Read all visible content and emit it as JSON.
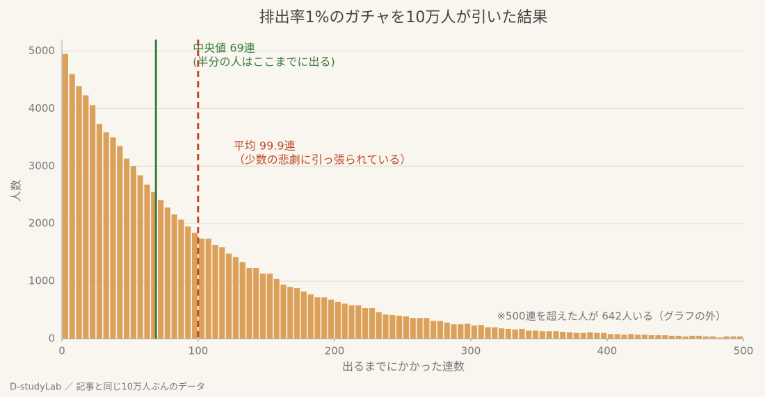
{
  "chart_data": {
    "type": "histogram",
    "title": "排出率1%のガチャを10万人が引いた結果",
    "x_label": "出るまでにかかった連数",
    "y_label": "人数",
    "color": "#dba15a",
    "bins": [
      0,
      5,
      10,
      15,
      20,
      25,
      30,
      35,
      40,
      45,
      50,
      55,
      60,
      65,
      70,
      75,
      80,
      85,
      90,
      95,
      100,
      105,
      110,
      115,
      120,
      125,
      130,
      135,
      140,
      145,
      150,
      155,
      160,
      165,
      170,
      175,
      180,
      185,
      190,
      195,
      200,
      205,
      210,
      215,
      220,
      225,
      230,
      235,
      240,
      245,
      250,
      255,
      260,
      265,
      270,
      275,
      280,
      285,
      290,
      295,
      300,
      305,
      310,
      315,
      320,
      325,
      330,
      335,
      340,
      345,
      350,
      355,
      360,
      365,
      370,
      375,
      380,
      385,
      390,
      395,
      400,
      405,
      410,
      415,
      420,
      425,
      430,
      435,
      440,
      445,
      450,
      455,
      460,
      465,
      470,
      475,
      480,
      485,
      490,
      495,
      500
    ],
    "counts": [
      4950,
      4600,
      4390,
      4230,
      4060,
      3730,
      3590,
      3500,
      3350,
      3130,
      3000,
      2840,
      2680,
      2550,
      2410,
      2280,
      2160,
      2070,
      1950,
      1840,
      1740,
      1740,
      1630,
      1590,
      1480,
      1420,
      1330,
      1230,
      1230,
      1130,
      1130,
      1040,
      940,
      900,
      880,
      820,
      770,
      720,
      720,
      680,
      640,
      610,
      580,
      580,
      530,
      530,
      460,
      420,
      410,
      400,
      390,
      360,
      360,
      360,
      310,
      310,
      280,
      250,
      250,
      260,
      230,
      240,
      200,
      200,
      180,
      170,
      160,
      170,
      140,
      140,
      130,
      130,
      130,
      120,
      110,
      100,
      100,
      110,
      100,
      100,
      80,
      80,
      70,
      80,
      70,
      70,
      60,
      60,
      60,
      50,
      50,
      40,
      50,
      50,
      40,
      40,
      20,
      40,
      40,
      40
    ],
    "xlim": [
      0,
      500
    ],
    "ylim": [
      0,
      5200
    ],
    "xticks": [
      0,
      100,
      200,
      300,
      400,
      500
    ],
    "yticks": [
      0,
      1000,
      2000,
      3000,
      4000,
      5000
    ],
    "grid": true,
    "reference_lines": [
      {
        "x": 69,
        "color": "#3b7a3f",
        "dashed": false,
        "label": [
          "中央値 69連",
          "(半分の人はここまでに出る)"
        ]
      },
      {
        "x": 99.9,
        "color": "#c0492b",
        "dashed": true,
        "label": [
          "平均 99.9連",
          "（少数の悲劇に引っ張られている）"
        ]
      }
    ],
    "note": "※500連を超えた人が 642人いる（グラフの外）",
    "footer": "D-studyLab ／ 記事と同じ10万人ぶんのデータ"
  }
}
